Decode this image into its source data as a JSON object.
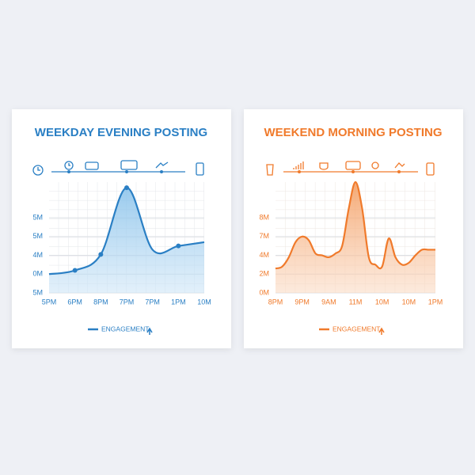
{
  "chart_data": [
    {
      "type": "area",
      "title": "WEEKDAY EVENING POSTING",
      "categories": [
        "5PM",
        "6PM",
        "8PM",
        "7PM",
        "7PM",
        "1PM",
        "10M"
      ],
      "series": [
        {
          "name": "ENGAGEMENT",
          "color": "#2a7fc4",
          "values": [
            1.0,
            1.2,
            2.05,
            5.6,
            2.3,
            2.5,
            2.7
          ]
        }
      ],
      "ylim": [
        0,
        5.9
      ],
      "yticks": [
        {
          "value": 0,
          "label": "5M"
        },
        {
          "value": 1,
          "label": "0M"
        },
        {
          "value": 2,
          "label": "4M"
        },
        {
          "value": 3,
          "label": "5M"
        },
        {
          "value": 4,
          "label": "5M"
        }
      ],
      "grid": true,
      "legend": "bottom"
    },
    {
      "type": "area",
      "title": "WEEKEND MORNING POSTING",
      "categories": [
        "8PM",
        null,
        null,
        null,
        "9PM",
        null,
        null,
        null,
        "9AM",
        null,
        null,
        null,
        "11M",
        null,
        null,
        null,
        "10M",
        null,
        null,
        null,
        "10M",
        null,
        null,
        null,
        "1PM"
      ],
      "series": [
        {
          "name": "ENGAGEMENT",
          "color": "#f07a2b",
          "values": [
            1.3,
            1.4,
            1.9,
            2.7,
            3.0,
            2.8,
            2.1,
            2.0,
            1.9,
            2.1,
            2.5,
            4.5,
            5.9,
            4.5,
            1.9,
            1.5,
            1.4,
            2.9,
            1.9,
            1.5,
            1.6,
            2.0,
            2.3,
            2.3,
            2.3
          ]
        }
      ],
      "ylim": [
        0,
        5.9
      ],
      "yticks": [
        {
          "value": 0,
          "label": "0M"
        },
        {
          "value": 1,
          "label": "2M"
        },
        {
          "value": 2,
          "label": "4M"
        },
        {
          "value": 3,
          "label": "7M"
        },
        {
          "value": 4,
          "label": "8M"
        }
      ],
      "grid": true,
      "legend": "bottom"
    }
  ]
}
